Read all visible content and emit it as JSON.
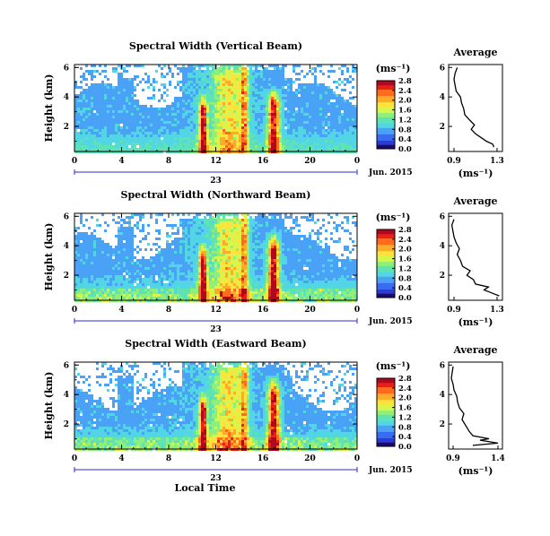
{
  "chart_data": {
    "type": "heatmap",
    "xlabel": "Local Time",
    "date_label": "Jun. 2015",
    "day_label": "23",
    "x_ticks": [
      "0",
      "4",
      "8",
      "12",
      "16",
      "20",
      "0"
    ],
    "y_ticks": [
      "2",
      "4",
      "6"
    ],
    "ylabel": "Height (km)",
    "colorbar_unit": "(ms⁻¹)",
    "colorbar_ticks": [
      "0.0",
      "0.4",
      "0.8",
      "1.2",
      "1.6",
      "2.0",
      "2.4",
      "2.8"
    ],
    "colorscale": [
      "#1a0a6b",
      "#2d3bd6",
      "#3a6cf2",
      "#4aa2f7",
      "#52d6e6",
      "#5fe3b2",
      "#8ef07a",
      "#d7f54b",
      "#ffe23a",
      "#ffab2a",
      "#ff6a1f",
      "#e8201a",
      "#b0091e"
    ],
    "panels": [
      {
        "title": "Spectral Width (Vertical Beam)",
        "avg_title": "Average",
        "avg_xlabel": "(ms⁻¹)",
        "avg_xticks": [
          "0.9",
          "1.3"
        ],
        "avg_xlim": [
          0.85,
          1.35
        ],
        "avg_yticks": [
          "2",
          "4",
          "6"
        ],
        "avg_profile": [
          [
            1.27,
            0.6
          ],
          [
            1.26,
            0.8
          ],
          [
            1.2,
            1.0
          ],
          [
            1.16,
            1.2
          ],
          [
            1.1,
            1.5
          ],
          [
            1.06,
            1.8
          ],
          [
            1.09,
            2.1
          ],
          [
            1.05,
            2.4
          ],
          [
            1.0,
            2.8
          ],
          [
            0.99,
            3.2
          ],
          [
            0.97,
            3.6
          ],
          [
            0.96,
            4.0
          ],
          [
            0.92,
            4.4
          ],
          [
            0.91,
            4.8
          ],
          [
            0.9,
            5.2
          ],
          [
            0.91,
            5.6
          ],
          [
            0.93,
            6.0
          ]
        ]
      },
      {
        "title": "Spectral Width (Northward Beam)",
        "avg_title": "Average",
        "avg_xlabel": "(ms⁻¹)",
        "avg_xticks": [
          "0.9",
          "1.3"
        ],
        "avg_xlim": [
          0.85,
          1.35
        ],
        "avg_yticks": [
          "2",
          "4",
          "6"
        ],
        "avg_profile": [
          [
            1.32,
            0.6
          ],
          [
            1.25,
            0.8
          ],
          [
            1.18,
            1.0
          ],
          [
            1.22,
            1.2
          ],
          [
            1.1,
            1.4
          ],
          [
            1.08,
            1.7
          ],
          [
            1.02,
            2.0
          ],
          [
            1.05,
            2.3
          ],
          [
            0.98,
            2.6
          ],
          [
            0.96,
            3.0
          ],
          [
            0.93,
            3.4
          ],
          [
            0.95,
            3.8
          ],
          [
            0.92,
            4.2
          ],
          [
            0.9,
            4.6
          ],
          [
            0.89,
            5.0
          ],
          [
            0.88,
            5.4
          ],
          [
            0.9,
            5.8
          ]
        ]
      },
      {
        "title": "Spectral Width (Eastward Beam)",
        "avg_title": "Average",
        "avg_xlabel": "(ms⁻¹)",
        "avg_xticks": [
          "0.9",
          "1.4"
        ],
        "avg_xlim": [
          0.85,
          1.45
        ],
        "avg_yticks": [
          "2",
          "4",
          "6"
        ],
        "avg_profile": [
          [
            1.12,
            0.55
          ],
          [
            1.4,
            0.7
          ],
          [
            1.2,
            0.9
          ],
          [
            1.3,
            1.0
          ],
          [
            1.12,
            1.2
          ],
          [
            1.08,
            1.5
          ],
          [
            1.04,
            1.9
          ],
          [
            1.0,
            2.3
          ],
          [
            1.02,
            2.7
          ],
          [
            0.97,
            3.1
          ],
          [
            0.95,
            3.5
          ],
          [
            0.94,
            3.9
          ],
          [
            0.91,
            4.3
          ],
          [
            0.9,
            4.7
          ],
          [
            0.88,
            5.1
          ],
          [
            0.89,
            5.5
          ],
          [
            0.9,
            5.9
          ]
        ]
      }
    ]
  }
}
